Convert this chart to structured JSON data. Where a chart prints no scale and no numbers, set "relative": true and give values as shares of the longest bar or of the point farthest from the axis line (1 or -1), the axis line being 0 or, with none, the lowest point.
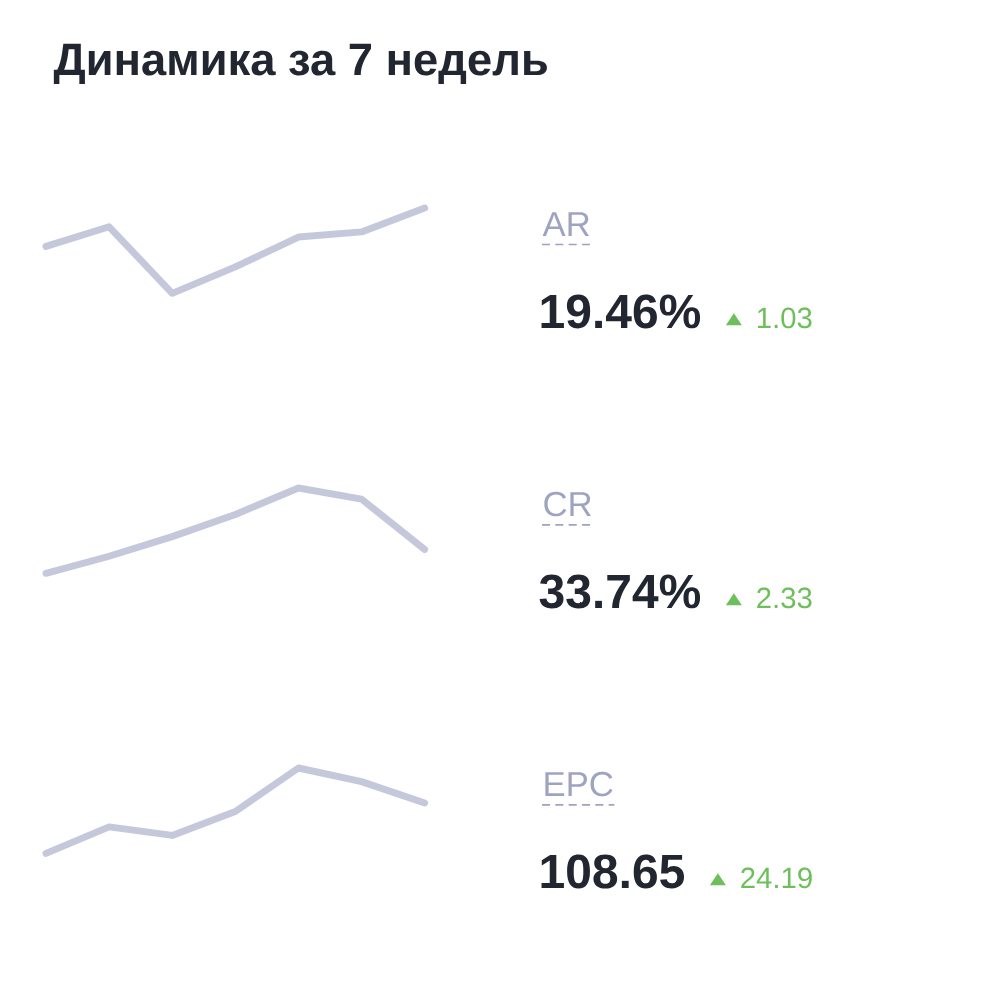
{
  "chart_data": [
    {
      "type": "line",
      "title": "Динамика за 7 недель",
      "relative": true,
      "categories": [
        null,
        null,
        null,
        null,
        null,
        null,
        null
      ],
      "color": "#c5c8da",
      "values": [
        0.55,
        0.78,
        0,
        0.31,
        0.66,
        0.72,
        1
      ],
      "annotations": [
        "AR",
        "19.46%",
        "1.03"
      ]
    },
    {
      "type": "line",
      "relative": true,
      "categories": [
        null,
        null,
        null,
        null,
        null,
        null,
        null
      ],
      "color": "#c5c8da",
      "values": [
        0,
        0.2,
        0.43,
        0.69,
        1,
        0.87,
        0.28
      ],
      "annotations": [
        "CR",
        "33.74%",
        "2.33"
      ]
    },
    {
      "type": "line",
      "relative": true,
      "categories": [
        null,
        null,
        null,
        null,
        null,
        null,
        null
      ],
      "color": "#c5c8da",
      "values": [
        0,
        0.31,
        0.21,
        0.49,
        1,
        0.84,
        0.59
      ],
      "annotations": [
        "EPC",
        "108.65",
        "24.19"
      ]
    }
  ]
}
